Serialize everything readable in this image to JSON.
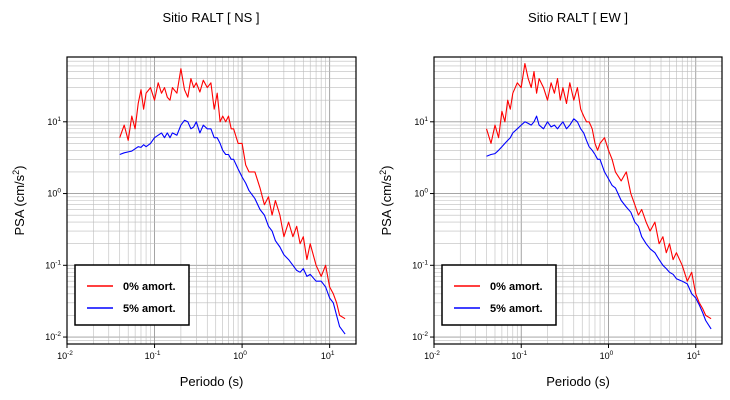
{
  "chart_data": [
    {
      "type": "line",
      "title": "Sitio RALT [ NS ]",
      "xlabel": "Periodo (s)",
      "ylabel_main": "PSA (cm/s",
      "ylabel_sup": "2",
      "ylabel_tail": ")",
      "x_scale": "log",
      "y_scale": "log",
      "xlim": [
        0.01,
        20
      ],
      "ylim": [
        0.008,
        80
      ],
      "grid": true,
      "legend_position": "bottom-left",
      "x_ticks": [
        {
          "base": "10",
          "exp": "-2"
        },
        {
          "base": "10",
          "exp": "-1"
        },
        {
          "base": "10",
          "exp": "0"
        },
        {
          "base": "10",
          "exp": "1"
        }
      ],
      "y_ticks": [
        {
          "base": "10",
          "exp": "-2"
        },
        {
          "base": "10",
          "exp": "-1"
        },
        {
          "base": "10",
          "exp": "0"
        },
        {
          "base": "10",
          "exp": "1"
        }
      ],
      "series": [
        {
          "name": "0% amort.",
          "color": "#ff0000",
          "x": [
            0.04,
            0.045,
            0.05,
            0.055,
            0.06,
            0.065,
            0.07,
            0.075,
            0.08,
            0.09,
            0.1,
            0.11,
            0.12,
            0.13,
            0.14,
            0.15,
            0.16,
            0.18,
            0.2,
            0.22,
            0.24,
            0.26,
            0.28,
            0.3,
            0.33,
            0.36,
            0.4,
            0.44,
            0.48,
            0.52,
            0.56,
            0.6,
            0.65,
            0.7,
            0.75,
            0.8,
            0.9,
            1.0,
            1.1,
            1.2,
            1.4,
            1.6,
            1.8,
            2.0,
            2.2,
            2.4,
            2.7,
            3.0,
            3.4,
            3.8,
            4.2,
            4.6,
            5.0,
            5.5,
            6.0,
            7.0,
            8.0,
            9.0,
            10.0,
            11.0,
            12.0,
            13.0,
            15.0
          ],
          "y": [
            6,
            9,
            5.5,
            12,
            8,
            18,
            28,
            15,
            25,
            30,
            20,
            35,
            25,
            30,
            22,
            20,
            30,
            25,
            55,
            28,
            22,
            40,
            30,
            35,
            26,
            38,
            30,
            35,
            15,
            25,
            10,
            12,
            10,
            12,
            8,
            8,
            5,
            5,
            2.5,
            2,
            2,
            1.2,
            0.7,
            0.9,
            0.5,
            0.8,
            0.5,
            0.25,
            0.4,
            0.25,
            0.35,
            0.2,
            0.25,
            0.12,
            0.2,
            0.1,
            0.07,
            0.1,
            0.05,
            0.04,
            0.03,
            0.02,
            0.018
          ]
        },
        {
          "name": "5% amort.",
          "color": "#0000ff",
          "x": [
            0.04,
            0.045,
            0.05,
            0.055,
            0.06,
            0.065,
            0.07,
            0.075,
            0.08,
            0.09,
            0.1,
            0.11,
            0.12,
            0.13,
            0.14,
            0.15,
            0.16,
            0.18,
            0.2,
            0.22,
            0.24,
            0.26,
            0.28,
            0.3,
            0.33,
            0.36,
            0.4,
            0.44,
            0.48,
            0.52,
            0.56,
            0.6,
            0.65,
            0.7,
            0.75,
            0.8,
            0.9,
            1.0,
            1.1,
            1.2,
            1.4,
            1.6,
            1.8,
            2.0,
            2.2,
            2.4,
            2.7,
            3.0,
            3.4,
            3.8,
            4.2,
            4.6,
            5.0,
            5.5,
            6.0,
            7.0,
            8.0,
            9.0,
            10.0,
            11.0,
            12.0,
            13.0,
            15.0
          ],
          "y": [
            3.5,
            3.7,
            3.8,
            3.9,
            4.2,
            4.5,
            4.4,
            4.8,
            4.5,
            5,
            6,
            6.5,
            7,
            6,
            7,
            6,
            7,
            6.5,
            9,
            10.5,
            10,
            8,
            8.5,
            10,
            7,
            9,
            8,
            8,
            6,
            6,
            5,
            4,
            3.5,
            3.5,
            3,
            3,
            2.2,
            1.7,
            1.4,
            1.1,
            0.85,
            0.6,
            0.5,
            0.35,
            0.3,
            0.22,
            0.18,
            0.14,
            0.12,
            0.1,
            0.085,
            0.08,
            0.09,
            0.07,
            0.075,
            0.06,
            0.06,
            0.05,
            0.035,
            0.03,
            0.02,
            0.014,
            0.011
          ]
        }
      ]
    },
    {
      "type": "line",
      "title": "Sitio RALT [ EW ]",
      "xlabel": "Periodo (s)",
      "ylabel_main": "PSA (cm/s",
      "ylabel_sup": "2",
      "ylabel_tail": ")",
      "x_scale": "log",
      "y_scale": "log",
      "xlim": [
        0.01,
        20
      ],
      "ylim": [
        0.008,
        80
      ],
      "grid": true,
      "legend_position": "bottom-left",
      "x_ticks": [
        {
          "base": "10",
          "exp": "-2"
        },
        {
          "base": "10",
          "exp": "-1"
        },
        {
          "base": "10",
          "exp": "0"
        },
        {
          "base": "10",
          "exp": "1"
        }
      ],
      "y_ticks": [
        {
          "base": "10",
          "exp": "-2"
        },
        {
          "base": "10",
          "exp": "-1"
        },
        {
          "base": "10",
          "exp": "0"
        },
        {
          "base": "10",
          "exp": "1"
        }
      ],
      "series": [
        {
          "name": "0% amort.",
          "color": "#ff0000",
          "x": [
            0.04,
            0.045,
            0.05,
            0.055,
            0.06,
            0.065,
            0.07,
            0.075,
            0.08,
            0.09,
            0.1,
            0.11,
            0.12,
            0.13,
            0.14,
            0.15,
            0.16,
            0.18,
            0.2,
            0.22,
            0.24,
            0.26,
            0.28,
            0.3,
            0.33,
            0.36,
            0.4,
            0.44,
            0.48,
            0.52,
            0.56,
            0.6,
            0.65,
            0.7,
            0.75,
            0.8,
            0.9,
            1.0,
            1.1,
            1.2,
            1.4,
            1.6,
            1.8,
            2.0,
            2.2,
            2.4,
            2.7,
            3.0,
            3.4,
            3.8,
            4.2,
            4.6,
            5.0,
            5.5,
            6.0,
            7.0,
            8.0,
            9.0,
            10.0,
            11.0,
            12.0,
            13.0,
            15.0
          ],
          "y": [
            8,
            5,
            9,
            6,
            14,
            10,
            20,
            15,
            25,
            35,
            30,
            65,
            40,
            30,
            50,
            25,
            40,
            30,
            20,
            35,
            25,
            40,
            20,
            30,
            18,
            35,
            20,
            30,
            15,
            12,
            10,
            10,
            8,
            5,
            4,
            5,
            6,
            4,
            3,
            2,
            1.5,
            2,
            1.0,
            0.7,
            0.5,
            0.6,
            0.4,
            0.3,
            0.4,
            0.2,
            0.25,
            0.15,
            0.2,
            0.12,
            0.15,
            0.1,
            0.06,
            0.08,
            0.04,
            0.03,
            0.025,
            0.02,
            0.018
          ]
        },
        {
          "name": "5% amort.",
          "color": "#0000ff",
          "x": [
            0.04,
            0.045,
            0.05,
            0.055,
            0.06,
            0.065,
            0.07,
            0.075,
            0.08,
            0.09,
            0.1,
            0.11,
            0.12,
            0.13,
            0.14,
            0.15,
            0.16,
            0.18,
            0.2,
            0.22,
            0.24,
            0.26,
            0.28,
            0.3,
            0.33,
            0.36,
            0.4,
            0.44,
            0.48,
            0.52,
            0.56,
            0.6,
            0.65,
            0.7,
            0.75,
            0.8,
            0.9,
            1.0,
            1.1,
            1.2,
            1.4,
            1.6,
            1.8,
            2.0,
            2.2,
            2.4,
            2.7,
            3.0,
            3.4,
            3.8,
            4.2,
            4.6,
            5.0,
            5.5,
            6.0,
            7.0,
            8.0,
            9.0,
            10.0,
            11.0,
            12.0,
            13.0,
            15.0
          ],
          "y": [
            3.3,
            3.5,
            3.6,
            4,
            4.5,
            5,
            5.5,
            6,
            7,
            8,
            9,
            10,
            9.5,
            9,
            10,
            12,
            9,
            8,
            10,
            8.5,
            9,
            8,
            9,
            10,
            8,
            9,
            11,
            10,
            8,
            7,
            5.5,
            4.5,
            4,
            3.5,
            3,
            3,
            2,
            1.6,
            1.3,
            1.2,
            0.8,
            0.65,
            0.55,
            0.4,
            0.35,
            0.25,
            0.2,
            0.17,
            0.15,
            0.12,
            0.1,
            0.09,
            0.08,
            0.075,
            0.065,
            0.06,
            0.055,
            0.04,
            0.035,
            0.028,
            0.022,
            0.017,
            0.013
          ]
        }
      ]
    }
  ]
}
